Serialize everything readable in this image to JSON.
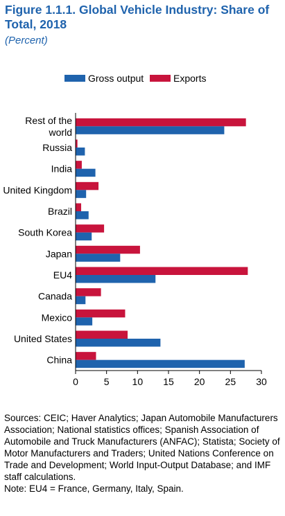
{
  "header": {
    "title": "Figure 1.1.1.  Global Vehicle Industry: Share of Total, 2018",
    "subtitle": "(Percent)"
  },
  "colors": {
    "gross_output": "#1f63ad",
    "exports": "#c8143c"
  },
  "chart_data": {
    "type": "bar",
    "orientation": "horizontal",
    "categories": [
      "Rest of the world",
      "Russia",
      "India",
      "United Kingdom",
      "Brazil",
      "South Korea",
      "Japan",
      "EU4",
      "Canada",
      "Mexico",
      "United States",
      "China"
    ],
    "category_lines": [
      [
        "Rest of the",
        "world"
      ],
      [
        "Russia"
      ],
      [
        "India"
      ],
      [
        "United Kingdom"
      ],
      [
        "Brazil"
      ],
      [
        "South Korea"
      ],
      [
        "Japan"
      ],
      [
        "EU4"
      ],
      [
        "Canada"
      ],
      [
        "Mexico"
      ],
      [
        "United States"
      ],
      [
        "China"
      ]
    ],
    "series": [
      {
        "name": "Exports",
        "values": [
          27.5,
          0.3,
          1.0,
          3.7,
          0.9,
          4.6,
          10.4,
          27.8,
          4.1,
          8.0,
          8.4,
          3.3
        ]
      },
      {
        "name": "Gross output",
        "values": [
          24.0,
          1.5,
          3.2,
          1.7,
          2.1,
          2.6,
          7.2,
          12.9,
          1.6,
          2.7,
          13.7,
          27.3
        ]
      }
    ],
    "xlim": [
      0,
      30
    ],
    "xticks": [
      0,
      5,
      10,
      15,
      20,
      25,
      30
    ],
    "legend_position": "top",
    "legend_order": [
      "Gross output",
      "Exports"
    ],
    "grid": false
  },
  "footer": {
    "sources": "Sources: CEIC; Haver Analytics; Japan Automobile Manufacturers Association; National statistics offices; Spanish Association of Automobile and Truck Manufacturers (ANFAC); Statista; Society of Motor Manufacturers and Traders; United Nations Conference on Trade and Development; World Input-Output Database; and IMF staff calculations.",
    "note": "Note: EU4 = France, Germany, Italy, Spain."
  }
}
